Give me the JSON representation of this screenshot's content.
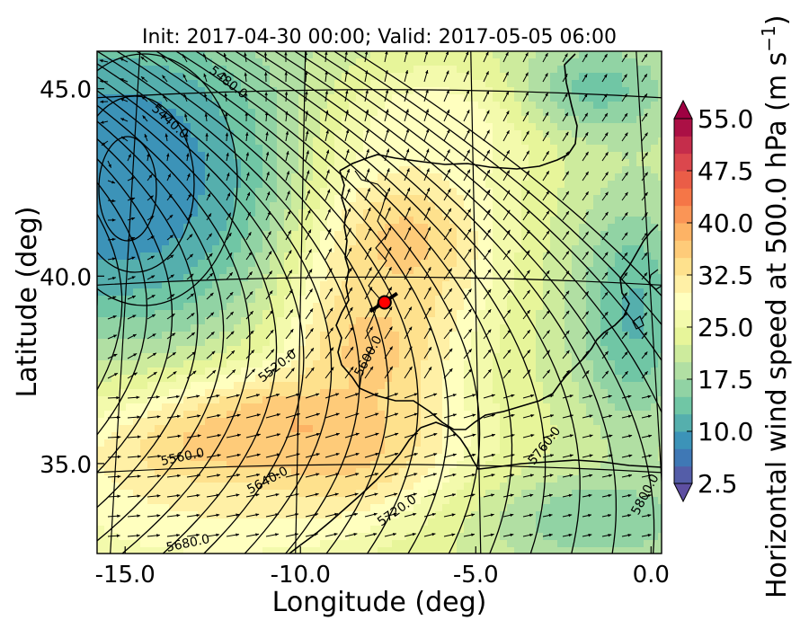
{
  "chart_data": {
    "type": "heatmap",
    "title": "Init: 2017-04-30 00:00; Valid: 2017-05-05 06:00",
    "xlabel": "Longitude (deg)",
    "ylabel": "Latitude (deg)",
    "xlim": [
      -15.8,
      0.3
    ],
    "ylim": [
      32.6,
      46.0
    ],
    "x_ticks": [
      "-15.0",
      "-10.0",
      "-5.0",
      "0.0"
    ],
    "x_tick_values": [
      -15.0,
      -10.0,
      -5.0,
      0.0
    ],
    "y_ticks": [
      "45.0",
      "40.0",
      "35.0"
    ],
    "y_tick_values": [
      45.0,
      40.0,
      35.0
    ],
    "colorbar": {
      "label": "Horizontal wind speed at 500.0 hPa",
      "unit_base": "(m s",
      "unit_exp": "−1",
      "unit_close": ")",
      "min": 2.5,
      "max": 55.0,
      "step": 2.5,
      "extend": "both",
      "ticks": [
        "2.5",
        "10.0",
        "17.5",
        "25.0",
        "32.5",
        "40.0",
        "47.5",
        "55.0"
      ],
      "tick_values": [
        2.5,
        10.0,
        17.5,
        25.0,
        32.5,
        40.0,
        47.5,
        55.0
      ],
      "colormap": [
        "#5e4fa2",
        "#3288bd",
        "#66c2a5",
        "#abdda4",
        "#e6f598",
        "#ffffbf",
        "#fee08b",
        "#fdae61",
        "#f46d43",
        "#d53e4f",
        "#9e0142"
      ]
    },
    "wind_speed_field": {
      "background": 22,
      "features": [
        {
          "name": "cyclone-core",
          "lon": -15.5,
          "lat": 42.8,
          "value": 4,
          "rx": 3.2,
          "ry": 2.6
        },
        {
          "name": "cyclone-ring",
          "lon": -15.0,
          "lat": 42.5,
          "value": 9,
          "rx": 5.2,
          "ry": 4.4
        },
        {
          "name": "jet-core",
          "lon": -10.0,
          "lat": 35.6,
          "value": 45,
          "rx": 2.6,
          "ry": 1.4
        },
        {
          "name": "jet-body",
          "lon": -11.5,
          "lat": 35.2,
          "value": 37,
          "rx": 5.5,
          "ry": 2.0
        },
        {
          "name": "jet-iberia-south",
          "lon": -8.0,
          "lat": 38.0,
          "value": 36,
          "rx": 2.4,
          "ry": 2.6
        },
        {
          "name": "jet-iberia-north",
          "lon": -7.0,
          "lat": 41.0,
          "value": 36,
          "rx": 2.6,
          "ry": 2.6
        },
        {
          "name": "north-speed-max",
          "lon": -6.0,
          "lat": 44.0,
          "value": 30,
          "rx": 3.0,
          "ry": 1.6
        },
        {
          "name": "southwest-band",
          "lon": -12.5,
          "lat": 33.6,
          "value": 30,
          "rx": 4.0,
          "ry": 1.2
        },
        {
          "name": "east-low",
          "lon": -0.5,
          "lat": 39.0,
          "value": 12,
          "rx": 1.6,
          "ry": 3.0
        },
        {
          "name": "northeast-low",
          "lon": -1.5,
          "lat": 45.0,
          "value": 14,
          "rx": 2.2,
          "ry": 1.3
        },
        {
          "name": "south-low",
          "lon": -1.5,
          "lat": 33.5,
          "value": 15,
          "rx": 3.0,
          "ry": 1.2
        }
      ]
    },
    "contours": {
      "levels": [
        5440.0,
        5480.0,
        5520.0,
        5560.0,
        5600.0,
        5640.0,
        5680.0,
        5720.0,
        5760.0,
        5800.0
      ],
      "labels": [
        "5440.0",
        "5480.0",
        "5520.0",
        "5560.0",
        "5600.0",
        "5640.0",
        "5680.0",
        "5720.0",
        "5760.0",
        "5800.0"
      ]
    },
    "marker": {
      "lon": -7.6,
      "lat": 39.3,
      "color": "#ff0000"
    },
    "graticule": {
      "lon_lines": [
        -15.0,
        -10.0,
        -5.0,
        0.0
      ],
      "lat_lines": [
        45.0,
        40.0,
        35.0
      ]
    },
    "grid": true,
    "legend": "colorbar-right"
  }
}
